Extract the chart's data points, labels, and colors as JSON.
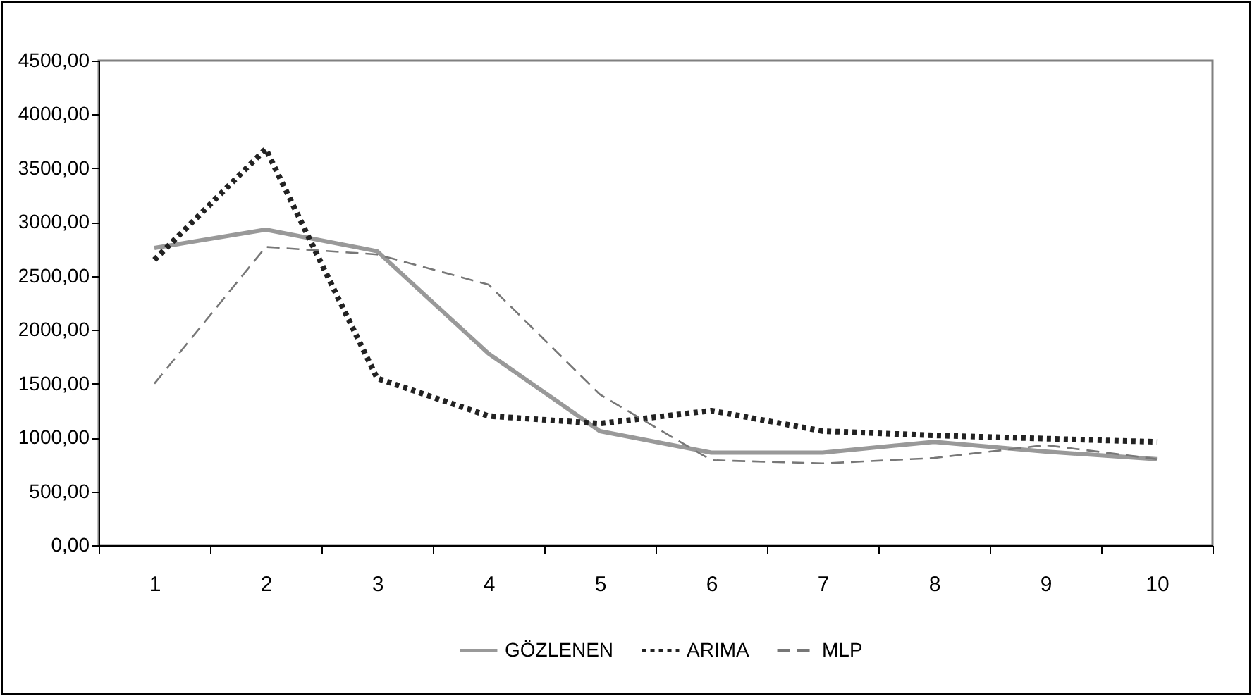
{
  "chart_data": {
    "type": "line",
    "categories": [
      "1",
      "2",
      "3",
      "4",
      "5",
      "6",
      "7",
      "8",
      "9",
      "10"
    ],
    "series": [
      {
        "name": "GÖZLENEN",
        "color": "#999999",
        "line_style": "solid",
        "values": [
          2760,
          2930,
          2730,
          1780,
          1060,
          860,
          860,
          960,
          870,
          800
        ]
      },
      {
        "name": "ARIMA",
        "color": "#222222",
        "line_style": "dotted",
        "values": [
          2650,
          3680,
          1550,
          1200,
          1130,
          1250,
          1060,
          1020,
          990,
          960
        ]
      },
      {
        "name": "MLP",
        "color": "#777777",
        "line_style": "dashed",
        "values": [
          1500,
          2770,
          2700,
          2420,
          1400,
          790,
          760,
          810,
          930,
          800
        ]
      }
    ],
    "ylim": [
      0,
      4500
    ],
    "yticks": [
      {
        "value": 0,
        "label": "0,00"
      },
      {
        "value": 500,
        "label": "500,00"
      },
      {
        "value": 1000,
        "label": "1000,00"
      },
      {
        "value": 1500,
        "label": "1500,00"
      },
      {
        "value": 2000,
        "label": "2000,00"
      },
      {
        "value": 2500,
        "label": "2500,00"
      },
      {
        "value": 3000,
        "label": "3000,00"
      },
      {
        "value": 3500,
        "label": "3500,00"
      },
      {
        "value": 4000,
        "label": "4000,00"
      },
      {
        "value": 4500,
        "label": "4500,00"
      }
    ],
    "grid": false,
    "legend": "bottom",
    "marker": "none"
  }
}
